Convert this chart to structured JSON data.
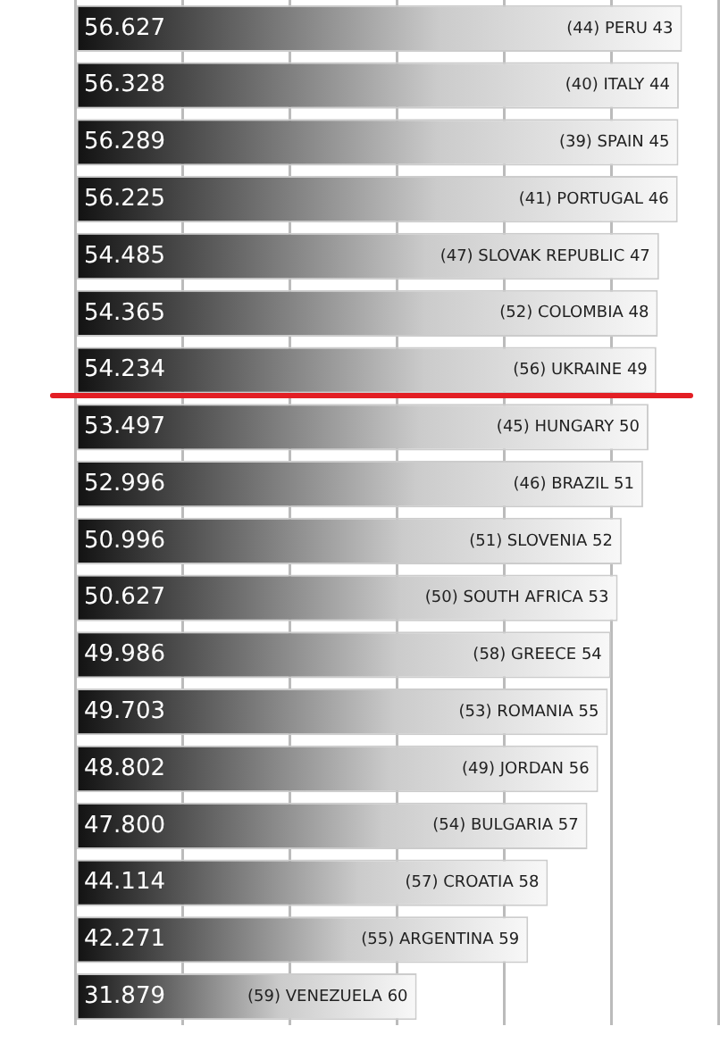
{
  "chart_data": {
    "type": "bar",
    "orientation": "horizontal",
    "categories": [
      "(44) PERU 43",
      "(40) ITALY 44",
      "(39) SPAIN 45",
      "(41) PORTUGAL 46",
      "(47) SLOVAK REPUBLIC 47",
      "(52) COLOMBIA 48",
      "(56) UKRAINE 49",
      "(45) HUNGARY 50",
      "(46) BRAZIL 51",
      "(51) SLOVENIA 52",
      "(50) SOUTH AFRICA 53",
      "(58) GREECE 54",
      "(53) ROMANIA 55",
      "(49) JORDAN 56",
      "(54) BULGARIA 57",
      "(57) CROATIA 58",
      "(55) ARGENTINA 59",
      "(59) VENEZUELA 60"
    ],
    "values": [
      56.627,
      56.328,
      56.289,
      56.225,
      54.485,
      54.365,
      54.234,
      53.497,
      52.996,
      50.996,
      50.627,
      49.986,
      49.703,
      48.802,
      47.8,
      44.114,
      42.271,
      31.879
    ],
    "value_labels": [
      "56.627",
      "56.328",
      "56.289",
      "56.225",
      "54.485",
      "54.365",
      "54.234",
      "53.497",
      "52.996",
      "50.996",
      "50.627",
      "49.986",
      "49.703",
      "48.802",
      "47.800",
      "44.114",
      "42.271",
      "31.879"
    ],
    "color": "#111111",
    "data_labels": true,
    "grid": "x",
    "tick_labels": "y",
    "legend": false
  }
}
